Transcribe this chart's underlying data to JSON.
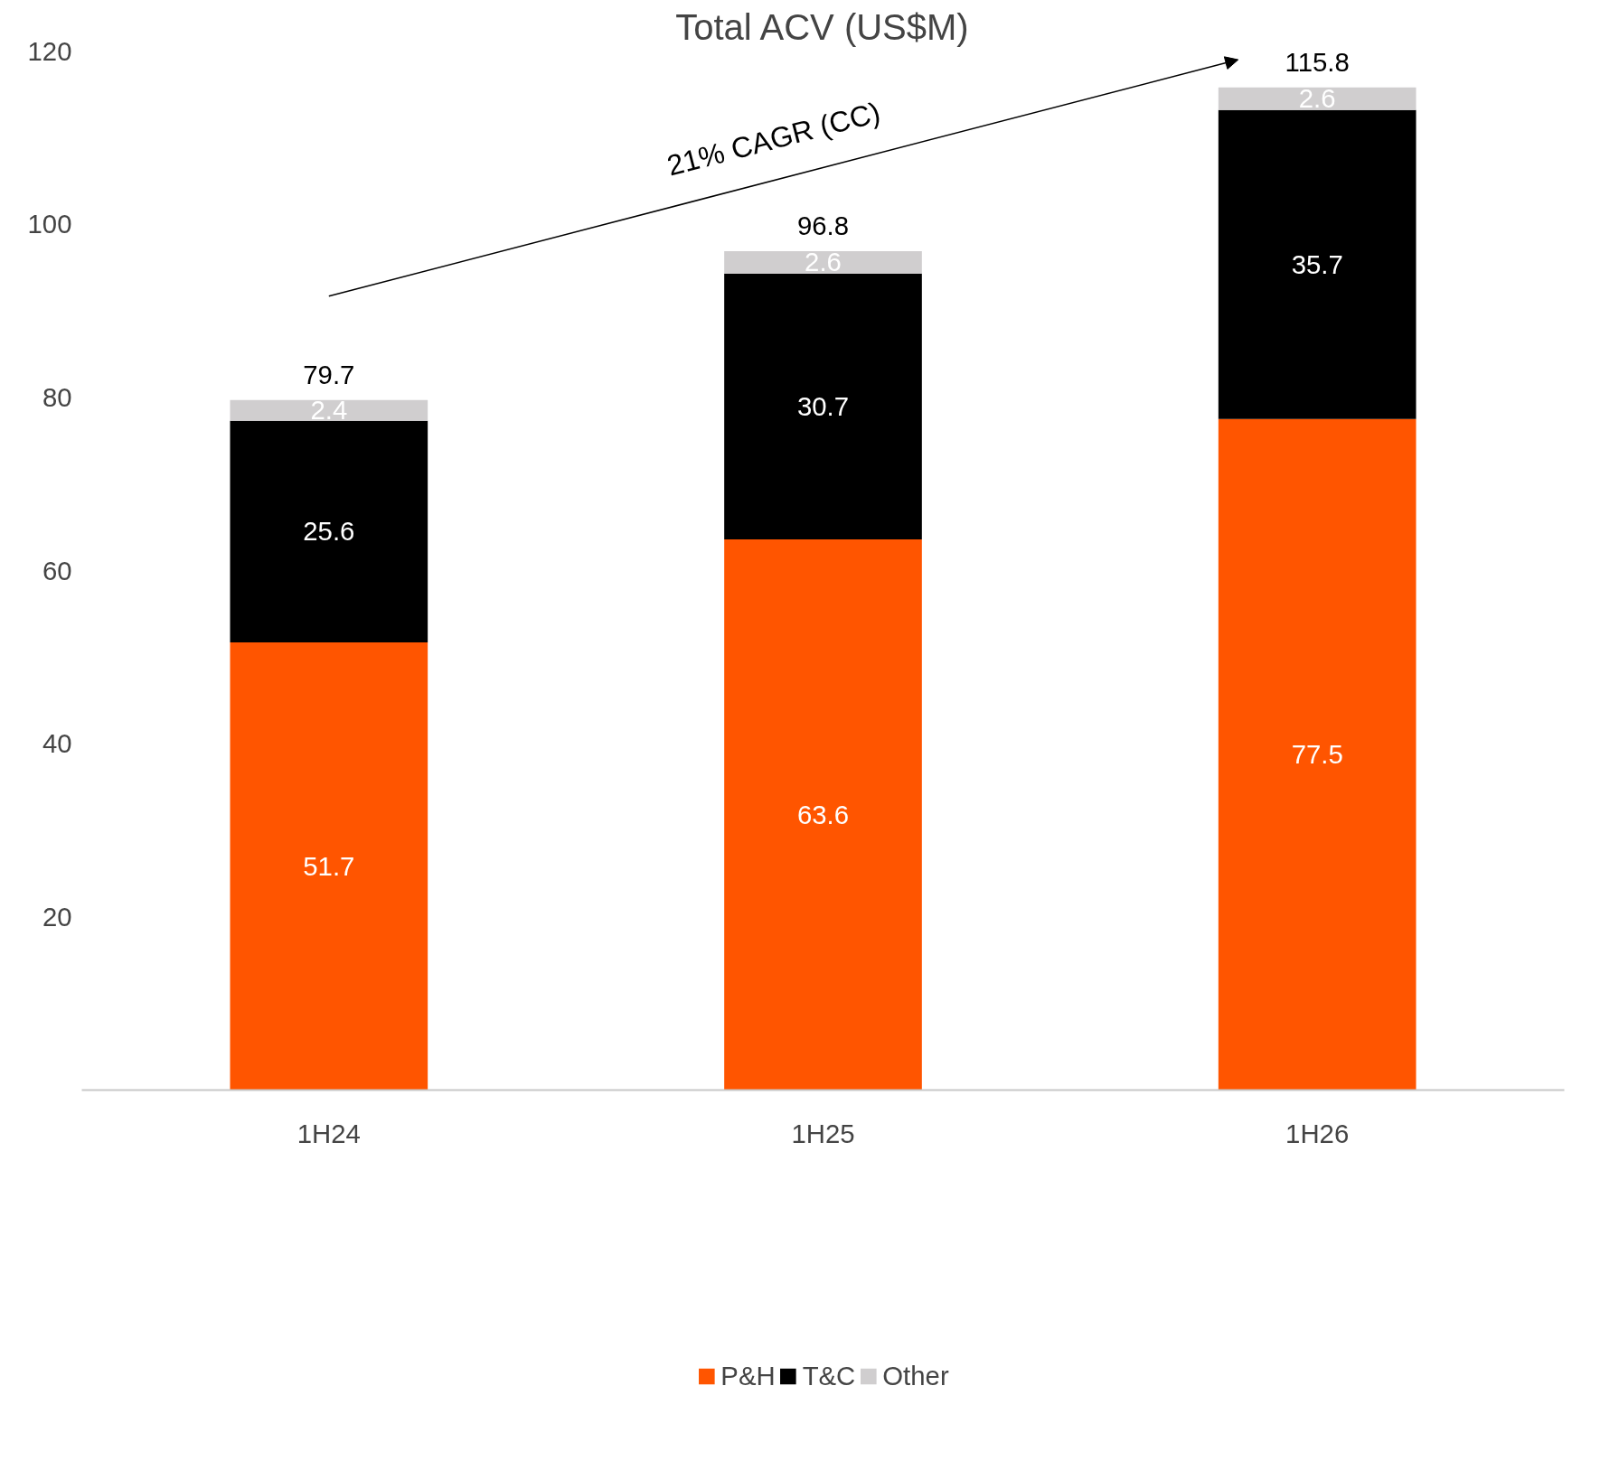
{
  "chart_data": {
    "type": "bar",
    "title": "Total ACV (US$M)",
    "stacked": true,
    "categories": [
      "1H24",
      "1H25",
      "1H26"
    ],
    "series": [
      {
        "name": "P&H",
        "color": "#ff5500",
        "values": [
          51.7,
          63.6,
          77.5
        ]
      },
      {
        "name": "T&C",
        "color": "#000000",
        "values": [
          25.6,
          30.7,
          35.7
        ]
      },
      {
        "name": "Other",
        "color": "#d0cecf",
        "values": [
          2.4,
          2.6,
          2.6
        ]
      }
    ],
    "data_labels": true,
    "totals": [
      "79.7",
      "96.8",
      "115.8"
    ],
    "annotations": [
      "21% CAGR (CC)"
    ],
    "ylim": [
      0,
      120
    ],
    "yticks": [
      20,
      40,
      60,
      80,
      100,
      120
    ],
    "grid": false,
    "legend": "bottom"
  }
}
